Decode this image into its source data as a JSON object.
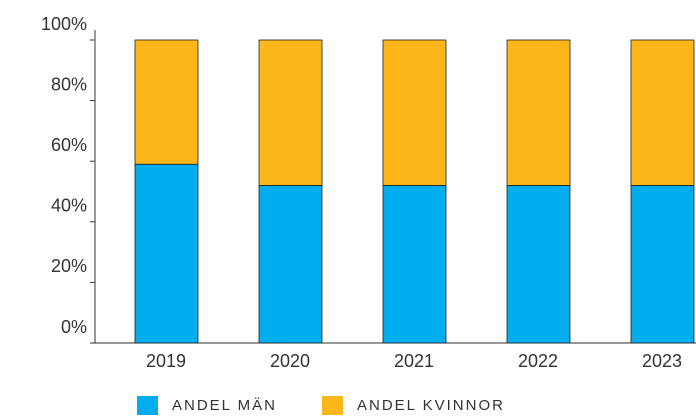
{
  "chart_data": {
    "type": "bar",
    "stacked": true,
    "categories": [
      "2019",
      "2020",
      "2021",
      "2022",
      "2023"
    ],
    "series": [
      {
        "name": "ANDEL MÄN",
        "color": "#00aeef",
        "values": [
          59,
          52,
          52,
          52,
          52
        ]
      },
      {
        "name": "ANDEL KVINNOR",
        "color": "#fdb71a",
        "values": [
          41,
          48,
          48,
          48,
          48
        ]
      }
    ],
    "ylim": [
      0,
      100
    ],
    "yticks": [
      {
        "value": 0,
        "label": "0%"
      },
      {
        "value": 20,
        "label": "20%"
      },
      {
        "value": 40,
        "label": "40%"
      },
      {
        "value": 60,
        "label": "60%"
      },
      {
        "value": 80,
        "label": "80%"
      },
      {
        "value": 100,
        "label": "100%"
      }
    ],
    "legend": "bottom"
  }
}
